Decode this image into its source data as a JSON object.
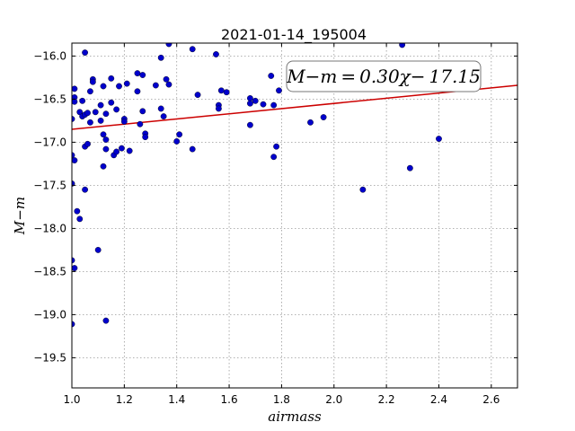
{
  "chart_data": {
    "type": "scatter",
    "title": "2021-01-14_195004",
    "xlabel": "airmass",
    "ylabel": "M−m",
    "xlim": [
      1.0,
      2.7
    ],
    "ylim": [
      -19.85,
      -15.85
    ],
    "y_inverted": true,
    "grid": true,
    "x_ticks": [
      "1.0",
      "1.2",
      "1.4",
      "1.6",
      "1.8",
      "2.0",
      "2.2",
      "2.4",
      "2.6"
    ],
    "y_ticks": [
      "−16.0",
      "−16.5",
      "−17.0",
      "−17.5",
      "−18.0",
      "−18.5",
      "−19.0",
      "−19.5"
    ],
    "colors": {
      "points": "#0000cc",
      "fit_line": "#cc0000",
      "grid": "#999999"
    },
    "fit": {
      "slope": 0.3,
      "intercept": -17.15
    },
    "annotation": "M−m = 0.30χ− 17.15",
    "points": [
      [
        1.0,
        -16.73
      ],
      [
        1.0,
        -17.15
      ],
      [
        1.0,
        -17.48
      ],
      [
        1.0,
        -18.37
      ],
      [
        1.0,
        -19.11
      ],
      [
        1.01,
        -16.38
      ],
      [
        1.01,
        -16.48
      ],
      [
        1.01,
        -16.53
      ],
      [
        1.01,
        -17.21
      ],
      [
        1.01,
        -18.46
      ],
      [
        1.02,
        -17.8
      ],
      [
        1.03,
        -17.89
      ],
      [
        1.03,
        -16.65
      ],
      [
        1.04,
        -16.7
      ],
      [
        1.04,
        -16.52
      ],
      [
        1.05,
        -15.96
      ],
      [
        1.05,
        -16.68
      ],
      [
        1.05,
        -17.05
      ],
      [
        1.05,
        -17.55
      ],
      [
        1.06,
        -17.02
      ],
      [
        1.06,
        -16.66
      ],
      [
        1.07,
        -16.41
      ],
      [
        1.07,
        -16.77
      ],
      [
        1.08,
        -16.27
      ],
      [
        1.08,
        -16.3
      ],
      [
        1.09,
        -16.65
      ],
      [
        1.1,
        -18.25
      ],
      [
        1.11,
        -16.57
      ],
      [
        1.11,
        -16.75
      ],
      [
        1.12,
        -16.35
      ],
      [
        1.12,
        -16.91
      ],
      [
        1.12,
        -17.28
      ],
      [
        1.13,
        -16.67
      ],
      [
        1.13,
        -16.97
      ],
      [
        1.13,
        -17.08
      ],
      [
        1.13,
        -19.07
      ],
      [
        1.15,
        -16.26
      ],
      [
        1.15,
        -16.54
      ],
      [
        1.16,
        -17.15
      ],
      [
        1.17,
        -17.11
      ],
      [
        1.17,
        -16.62
      ],
      [
        1.18,
        -16.35
      ],
      [
        1.19,
        -17.07
      ],
      [
        1.2,
        -16.73
      ],
      [
        1.2,
        -16.76
      ],
      [
        1.21,
        -16.32
      ],
      [
        1.22,
        -17.1
      ],
      [
        1.25,
        -16.2
      ],
      [
        1.25,
        -16.41
      ],
      [
        1.26,
        -16.79
      ],
      [
        1.27,
        -16.22
      ],
      [
        1.27,
        -16.64
      ],
      [
        1.28,
        -16.9
      ],
      [
        1.28,
        -16.94
      ],
      [
        1.32,
        -16.34
      ],
      [
        1.34,
        -16.02
      ],
      [
        1.34,
        -16.61
      ],
      [
        1.35,
        -16.7
      ],
      [
        1.36,
        -16.27
      ],
      [
        1.37,
        -15.86
      ],
      [
        1.37,
        -16.33
      ],
      [
        1.4,
        -16.99
      ],
      [
        1.41,
        -16.91
      ],
      [
        1.46,
        -15.92
      ],
      [
        1.46,
        -17.08
      ],
      [
        1.48,
        -16.45
      ],
      [
        1.55,
        -15.98
      ],
      [
        1.56,
        -16.57
      ],
      [
        1.56,
        -16.61
      ],
      [
        1.57,
        -16.4
      ],
      [
        1.59,
        -16.42
      ],
      [
        1.68,
        -16.49
      ],
      [
        1.68,
        -16.55
      ],
      [
        1.68,
        -16.8
      ],
      [
        1.7,
        -16.52
      ],
      [
        1.73,
        -16.56
      ],
      [
        1.76,
        -16.23
      ],
      [
        1.77,
        -16.57
      ],
      [
        1.77,
        -17.17
      ],
      [
        1.78,
        -17.05
      ],
      [
        1.79,
        -16.4
      ],
      [
        1.91,
        -16.77
      ],
      [
        1.96,
        -16.71
      ],
      [
        2.11,
        -17.55
      ],
      [
        2.26,
        -15.87
      ],
      [
        2.29,
        -17.3
      ],
      [
        2.4,
        -16.96
      ]
    ]
  }
}
